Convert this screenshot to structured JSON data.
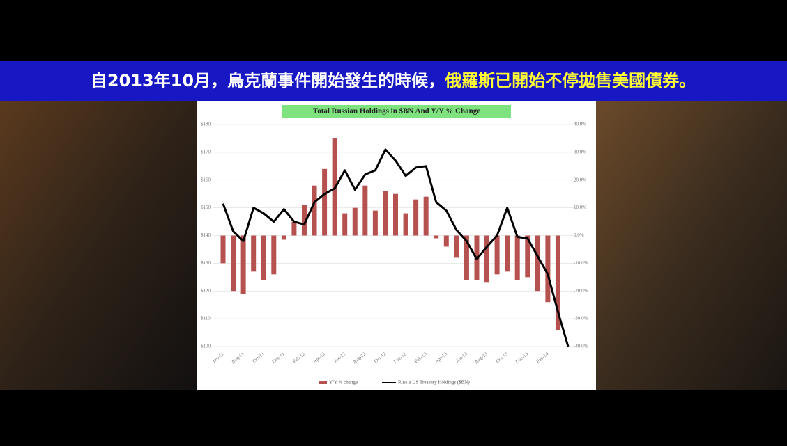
{
  "banner": {
    "text_white": "自2013年10月，烏克蘭事件開始發生的時候，",
    "text_yellow": "俄羅斯已開始不停拋售美國債券。"
  },
  "chart_data": {
    "type": "combo",
    "title": "Total Russian Holdings in $BN And Y/Y % Change",
    "categories": [
      "Jun-11",
      null,
      "Aug-11",
      null,
      "Oct-11",
      null,
      "Dec-11",
      null,
      "Feb-12",
      null,
      "Apr-12",
      null,
      "Jun-12",
      null,
      "Aug-12",
      null,
      "Oct-12",
      null,
      "Dec-12",
      null,
      "Feb-13",
      null,
      "Apr-13",
      null,
      "Jun-13",
      null,
      "Aug-13",
      null,
      "Oct-13",
      null,
      "Dec-13",
      null,
      "Feb-14",
      null,
      null
    ],
    "series": [
      {
        "name": "Y/Y % change",
        "type": "bar",
        "axis": "y2",
        "color": "#b5524f",
        "values": [
          -10,
          -20,
          -21,
          -13,
          -16,
          -14,
          -1.5,
          5,
          11,
          18,
          24,
          35,
          8,
          10,
          18,
          9,
          16,
          15,
          8,
          13,
          14,
          -1,
          -4,
          -8,
          -16,
          -16,
          -17,
          -14,
          -13,
          -16,
          -15,
          -20,
          -24,
          -34,
          null
        ]
      },
      {
        "name": "Russia US Treasury Holdings ($BN)",
        "type": "line",
        "color": "#000000",
        "values": [
          151.5,
          141.5,
          138,
          150,
          148,
          145,
          149.5,
          145,
          144,
          152,
          155,
          157,
          163.5,
          156.5,
          162,
          163.5,
          171,
          167,
          161.5,
          164.5,
          165,
          152,
          149,
          142,
          138,
          131.5,
          136,
          140,
          150,
          139.5,
          139,
          132.5,
          126,
          112.5,
          100
        ]
      }
    ],
    "ylim": [
      100,
      180
    ],
    "yticks": [
      {
        "value": 100,
        "label": "$100"
      },
      {
        "value": 110,
        "label": "$110"
      },
      {
        "value": 120,
        "label": "$120"
      },
      {
        "value": 130,
        "label": "$130"
      },
      {
        "value": 140,
        "label": "$140"
      },
      {
        "value": 150,
        "label": "$150"
      },
      {
        "value": 160,
        "label": "$160"
      },
      {
        "value": 170,
        "label": "$170"
      },
      {
        "value": 180,
        "label": "$180"
      }
    ],
    "y2lim": [
      -40,
      40
    ],
    "y2ticks": [
      {
        "value": -40,
        "label": "-40.0%"
      },
      {
        "value": -30,
        "label": "-30.0%"
      },
      {
        "value": -20,
        "label": "-20.0%"
      },
      {
        "value": -10,
        "label": "-10.0%"
      },
      {
        "value": 0,
        "label": "0.0%"
      },
      {
        "value": 10,
        "label": "10.0%"
      },
      {
        "value": 20,
        "label": "20.0%"
      },
      {
        "value": 30,
        "label": "30.0%"
      },
      {
        "value": 40,
        "label": "40.0%"
      }
    ],
    "grid": true
  }
}
